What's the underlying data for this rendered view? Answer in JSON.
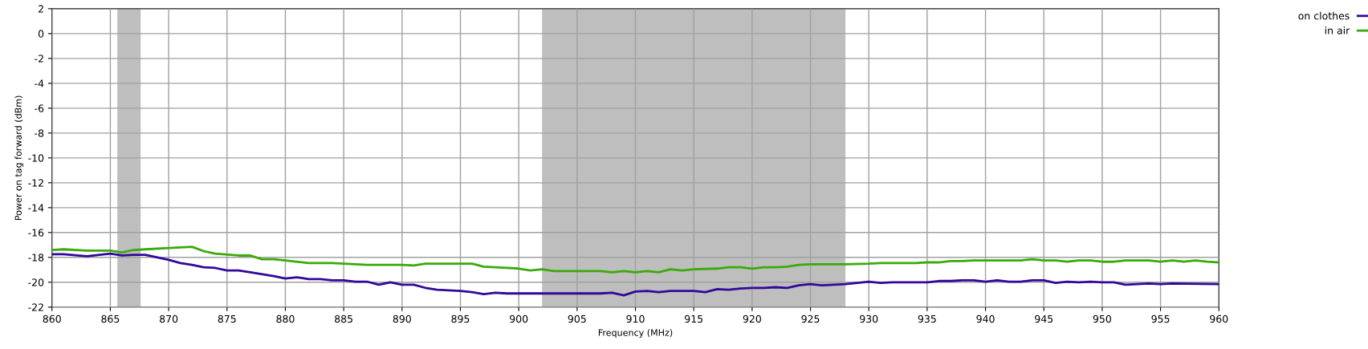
{
  "chart_data": {
    "type": "line",
    "xlabel": "Frequency (MHz)",
    "ylabel": "Power on tag forward (dBm)",
    "xlim": [
      860,
      960
    ],
    "xticks": [
      860,
      865,
      870,
      875,
      880,
      885,
      890,
      895,
      900,
      905,
      910,
      915,
      920,
      925,
      930,
      935,
      940,
      945,
      950,
      955,
      960
    ],
    "ylim": [
      -22,
      2
    ],
    "yticks": [
      -22,
      -20,
      -18,
      -16,
      -14,
      -12,
      -10,
      -8,
      -6,
      -4,
      -2,
      0,
      2
    ],
    "grid": true,
    "legend": "top right",
    "marker": "none",
    "line_style": "solid",
    "bands": [
      {
        "axis": "x",
        "from": 865.6,
        "to": 867.6,
        "color": "#bebebe"
      },
      {
        "axis": "x",
        "from": 902,
        "to": 928,
        "color": "#bebebe"
      }
    ],
    "series": [
      {
        "name": "on clothes",
        "color": "#33079a",
        "x": [
          860,
          861,
          863,
          865,
          866,
          867,
          868,
          870,
          871,
          872,
          873,
          874,
          875,
          876,
          877,
          879,
          880,
          881,
          882,
          883,
          884,
          885,
          886,
          887,
          888,
          889,
          890,
          891,
          892,
          893,
          895,
          896,
          897,
          898,
          899,
          907,
          908,
          909,
          910,
          911,
          912,
          913,
          915,
          916,
          917,
          918,
          919,
          920,
          921,
          922,
          923,
          924,
          925,
          926,
          927,
          928,
          930,
          931,
          932,
          935,
          936,
          937,
          938,
          939,
          940,
          941,
          942,
          943,
          944,
          945,
          946,
          947,
          948,
          949,
          950,
          951,
          952,
          953,
          954,
          955,
          956,
          960
        ],
        "values": [
          -17.75,
          -17.75,
          -17.9,
          -17.7,
          -17.85,
          -17.8,
          -17.8,
          -18.2,
          -18.45,
          -18.6,
          -18.8,
          -18.85,
          -19.05,
          -19.05,
          -19.2,
          -19.5,
          -19.7,
          -19.6,
          -19.75,
          -19.75,
          -19.85,
          -19.85,
          -19.95,
          -19.95,
          -20.2,
          -20.0,
          -20.2,
          -20.2,
          -20.45,
          -20.6,
          -20.7,
          -20.8,
          -20.95,
          -20.85,
          -20.9,
          -20.9,
          -20.85,
          -21.05,
          -20.75,
          -20.7,
          -20.8,
          -20.7,
          -20.7,
          -20.8,
          -20.55,
          -20.6,
          -20.5,
          -20.45,
          -20.45,
          -20.4,
          -20.45,
          -20.25,
          -20.15,
          -20.25,
          -20.2,
          -20.15,
          -19.95,
          -20.05,
          -20.0,
          -20.0,
          -19.9,
          -19.9,
          -19.85,
          -19.85,
          -19.95,
          -19.85,
          -19.95,
          -19.95,
          -19.85,
          -19.85,
          -20.05,
          -19.95,
          -20.0,
          -19.95,
          -20.0,
          -20.0,
          -20.2,
          -20.15,
          -20.1,
          -20.15,
          -20.1,
          -20.15
        ]
      },
      {
        "name": "in air",
        "color": "#3aaa0a",
        "x": [
          860,
          861,
          863,
          865,
          866,
          867,
          868,
          870,
          872,
          873,
          874,
          876,
          877,
          878,
          879,
          880,
          882,
          884,
          885,
          887,
          890,
          891,
          892,
          896,
          897,
          899,
          900,
          901,
          902,
          903,
          907,
          908,
          909,
          910,
          911,
          912,
          913,
          914,
          915,
          917,
          918,
          919,
          920,
          921,
          922,
          923,
          924,
          925,
          927,
          928,
          930,
          931,
          934,
          935,
          936,
          937,
          938,
          939,
          943,
          944,
          945,
          946,
          947,
          948,
          949,
          950,
          951,
          952,
          954,
          955,
          956,
          957,
          958,
          959,
          960
        ],
        "values": [
          -17.4,
          -17.35,
          -17.45,
          -17.45,
          -17.6,
          -17.4,
          -17.35,
          -17.25,
          -17.15,
          -17.5,
          -17.7,
          -17.85,
          -17.85,
          -18.15,
          -18.15,
          -18.25,
          -18.45,
          -18.45,
          -18.5,
          -18.6,
          -18.6,
          -18.65,
          -18.5,
          -18.5,
          -18.75,
          -18.85,
          -18.9,
          -19.05,
          -18.95,
          -19.1,
          -19.1,
          -19.2,
          -19.1,
          -19.2,
          -19.1,
          -19.2,
          -18.95,
          -19.05,
          -18.95,
          -18.9,
          -18.8,
          -18.8,
          -18.9,
          -18.8,
          -18.8,
          -18.75,
          -18.6,
          -18.55,
          -18.55,
          -18.55,
          -18.5,
          -18.45,
          -18.45,
          -18.4,
          -18.4,
          -18.3,
          -18.3,
          -18.25,
          -18.25,
          -18.15,
          -18.25,
          -18.25,
          -18.35,
          -18.25,
          -18.25,
          -18.35,
          -18.35,
          -18.25,
          -18.25,
          -18.35,
          -18.25,
          -18.35,
          -18.25,
          -18.35,
          -18.4
        ]
      }
    ]
  }
}
